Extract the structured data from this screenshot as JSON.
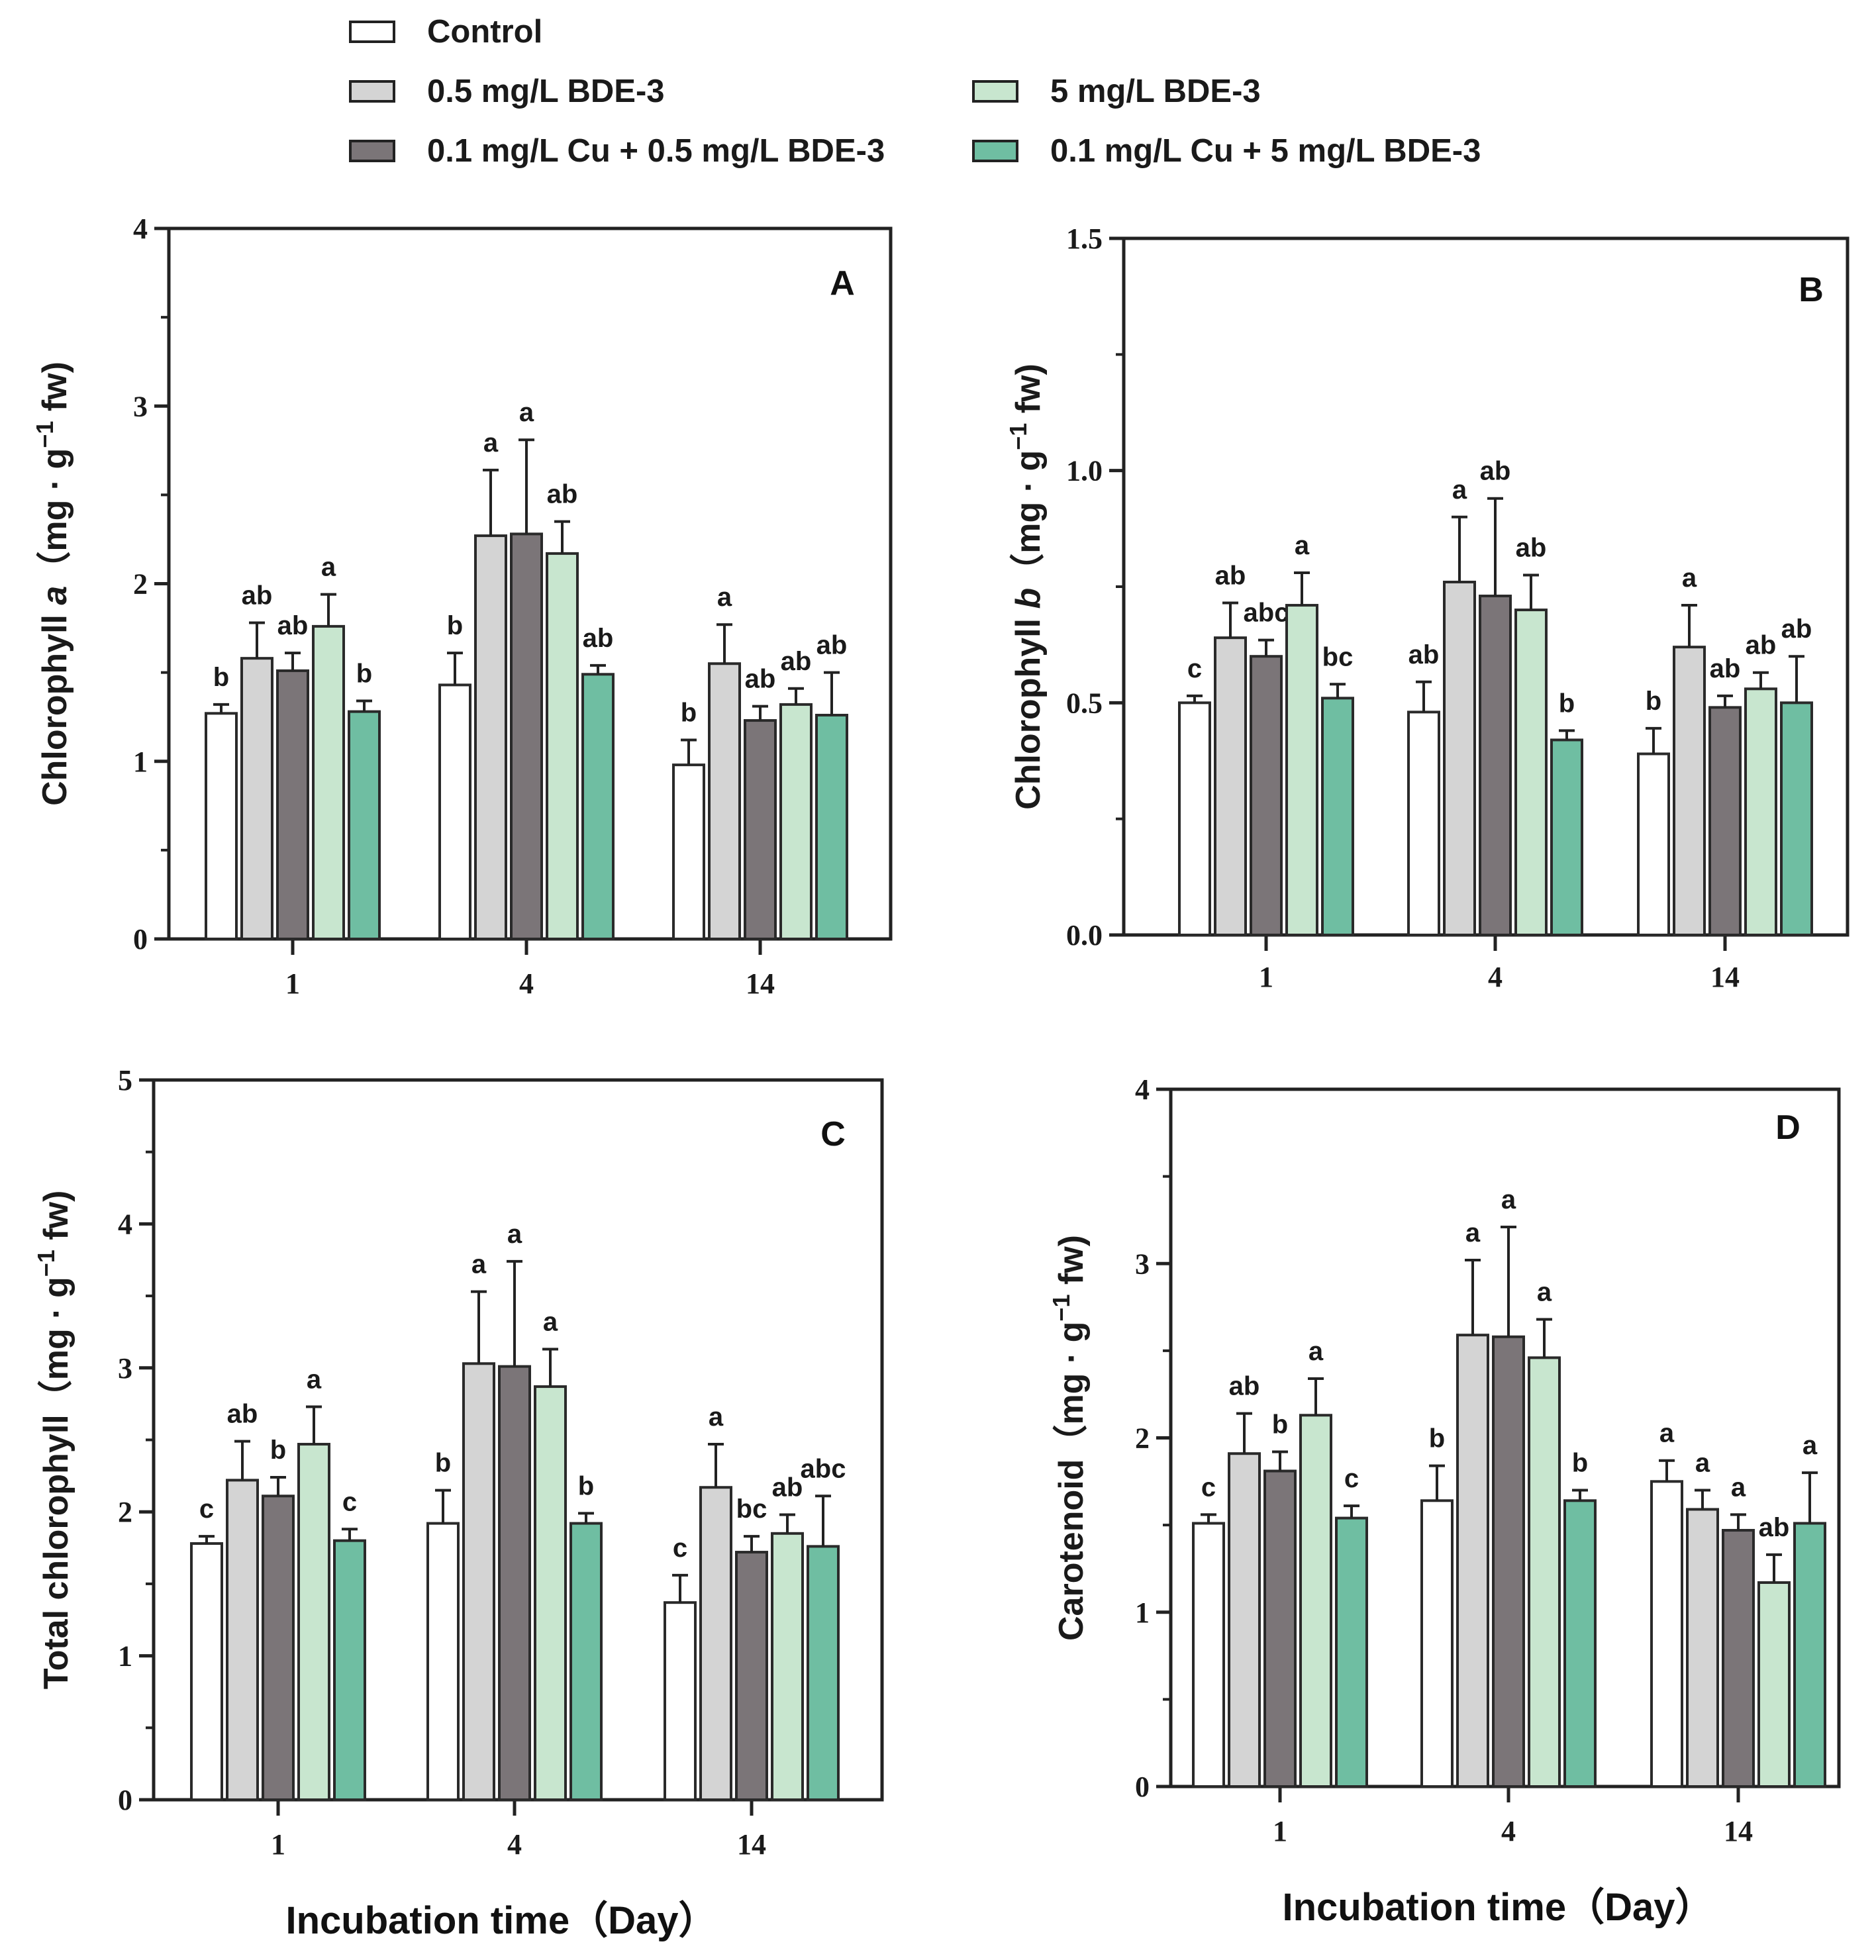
{
  "legend": [
    {
      "label": "Control",
      "color": "#ffffff"
    },
    {
      "label": "0.5 mg/L BDE-3",
      "color": "#d4d4d4"
    },
    {
      "label": "5 mg/L BDE-3",
      "color": "#c8e6cf"
    },
    {
      "label": "0.1 mg/L Cu + 0.5 mg/L BDE-3",
      "color": "#7b7578"
    },
    {
      "label": "0.1 mg/L Cu + 5 mg/L BDE-3",
      "color": "#6fbea2"
    }
  ],
  "chart_data": [
    {
      "type": "bar",
      "panel": "A",
      "ylabel_prefix": "Chlorophyll",
      "ylabel_italic": "a",
      "ylabel_unit": "（mg · g",
      "ylabel_sup": "−1",
      "ylabel_end": " fw)",
      "ylim": [
        0,
        4
      ],
      "yticks": [
        "0",
        "1",
        "2",
        "3",
        "4"
      ],
      "categories": [
        "1",
        "4",
        "14"
      ],
      "series": [
        {
          "name": "Control",
          "values": [
            1.27,
            1.43,
            0.98
          ],
          "errors": [
            0.05,
            0.18,
            0.14
          ],
          "letters": [
            "b",
            "b",
            "b"
          ]
        },
        {
          "name": "0.5 mg/L BDE-3",
          "values": [
            1.58,
            2.27,
            1.55
          ],
          "errors": [
            0.2,
            0.37,
            0.22
          ],
          "letters": [
            "ab",
            "a",
            "a"
          ]
        },
        {
          "name": "0.1 mg/L Cu + 0.5 mg/L BDE-3",
          "values": [
            1.51,
            2.28,
            1.23
          ],
          "errors": [
            0.1,
            0.53,
            0.08
          ],
          "letters": [
            "ab",
            "a",
            "ab"
          ]
        },
        {
          "name": "5 mg/L BDE-3",
          "values": [
            1.76,
            2.17,
            1.32
          ],
          "errors": [
            0.18,
            0.18,
            0.09
          ],
          "letters": [
            "a",
            "ab",
            "ab"
          ]
        },
        {
          "name": "0.1 mg/L Cu + 5 mg/L BDE-3",
          "values": [
            1.28,
            1.49,
            1.26
          ],
          "errors": [
            0.06,
            0.05,
            0.24
          ],
          "letters": [
            "b",
            "ab",
            "ab"
          ]
        }
      ]
    },
    {
      "type": "bar",
      "panel": "B",
      "ylabel_prefix": "Chlorophyll",
      "ylabel_italic": "b",
      "ylabel_unit": "（mg · g",
      "ylabel_sup": "−1",
      "ylabel_end": " fw)",
      "ylim": [
        0,
        1.5
      ],
      "yticks": [
        "0.0",
        "0.5",
        "1.0",
        "1.5"
      ],
      "categories": [
        "1",
        "4",
        "14"
      ],
      "series": [
        {
          "name": "Control",
          "values": [
            0.5,
            0.48,
            0.39
          ],
          "errors": [
            0.015,
            0.065,
            0.055
          ],
          "letters": [
            "c",
            "ab",
            "b"
          ]
        },
        {
          "name": "0.5 mg/L BDE-3",
          "values": [
            0.64,
            0.76,
            0.62
          ],
          "errors": [
            0.075,
            0.14,
            0.09
          ],
          "letters": [
            "ab",
            "a",
            "a"
          ]
        },
        {
          "name": "0.1 mg/L Cu + 0.5 mg/L BDE-3",
          "values": [
            0.6,
            0.73,
            0.49
          ],
          "errors": [
            0.035,
            0.21,
            0.025
          ],
          "letters": [
            "abc",
            "ab",
            "ab"
          ]
        },
        {
          "name": "5 mg/L BDE-3",
          "values": [
            0.71,
            0.7,
            0.53
          ],
          "errors": [
            0.07,
            0.075,
            0.035
          ],
          "letters": [
            "a",
            "ab",
            "ab"
          ]
        },
        {
          "name": "0.1 mg/L Cu + 5 mg/L BDE-3",
          "values": [
            0.51,
            0.42,
            0.5
          ],
          "errors": [
            0.03,
            0.02,
            0.1
          ],
          "letters": [
            "bc",
            "b",
            "ab"
          ]
        }
      ]
    },
    {
      "type": "bar",
      "panel": "C",
      "ylabel_prefix": "Total chlorophyll",
      "ylabel_italic": "",
      "ylabel_unit": "（mg · g",
      "ylabel_sup": "−1",
      "ylabel_end": " fw)",
      "ylim": [
        0,
        5
      ],
      "yticks": [
        "0",
        "1",
        "2",
        "3",
        "4",
        "5"
      ],
      "categories": [
        "1",
        "4",
        "14"
      ],
      "series": [
        {
          "name": "Control",
          "values": [
            1.78,
            1.92,
            1.37
          ],
          "errors": [
            0.05,
            0.23,
            0.19
          ],
          "letters": [
            "c",
            "b",
            "c"
          ]
        },
        {
          "name": "0.5 mg/L BDE-3",
          "values": [
            2.22,
            3.03,
            2.17
          ],
          "errors": [
            0.27,
            0.5,
            0.3
          ],
          "letters": [
            "ab",
            "a",
            "a"
          ]
        },
        {
          "name": "0.1 mg/L Cu + 0.5 mg/L BDE-3",
          "values": [
            2.11,
            3.01,
            1.72
          ],
          "errors": [
            0.13,
            0.73,
            0.11
          ],
          "letters": [
            "b",
            "a",
            "bc"
          ]
        },
        {
          "name": "5 mg/L BDE-3",
          "values": [
            2.47,
            2.87,
            1.85
          ],
          "errors": [
            0.26,
            0.26,
            0.13
          ],
          "letters": [
            "a",
            "a",
            "ab"
          ]
        },
        {
          "name": "0.1 mg/L Cu + 5 mg/L BDE-3",
          "values": [
            1.8,
            1.92,
            1.76
          ],
          "errors": [
            0.08,
            0.07,
            0.35
          ],
          "letters": [
            "c",
            "b",
            "abc"
          ]
        }
      ]
    },
    {
      "type": "bar",
      "panel": "D",
      "ylabel_prefix": "Carotenoid",
      "ylabel_italic": "",
      "ylabel_unit": "（mg · g",
      "ylabel_sup": "−1",
      "ylabel_end": " fw)",
      "ylim": [
        0,
        4
      ],
      "yticks": [
        "0",
        "1",
        "2",
        "3",
        "4"
      ],
      "categories": [
        "1",
        "4",
        "14"
      ],
      "series": [
        {
          "name": "Control",
          "values": [
            1.51,
            1.64,
            1.75
          ],
          "errors": [
            0.05,
            0.2,
            0.12
          ],
          "letters": [
            "c",
            "b",
            "a"
          ]
        },
        {
          "name": "0.5 mg/L BDE-3",
          "values": [
            1.91,
            2.59,
            1.59
          ],
          "errors": [
            0.23,
            0.43,
            0.11
          ],
          "letters": [
            "ab",
            "a",
            "a"
          ]
        },
        {
          "name": "0.1 mg/L Cu + 0.5 mg/L BDE-3",
          "values": [
            1.81,
            2.58,
            1.47
          ],
          "errors": [
            0.11,
            0.63,
            0.09
          ],
          "letters": [
            "b",
            "a",
            "a"
          ]
        },
        {
          "name": "5 mg/L BDE-3",
          "values": [
            2.13,
            2.46,
            1.17
          ],
          "errors": [
            0.21,
            0.22,
            0.16
          ],
          "letters": [
            "a",
            "a",
            "ab"
          ]
        },
        {
          "name": "0.1 mg/L Cu + 5 mg/L BDE-3",
          "values": [
            1.54,
            1.64,
            1.51
          ],
          "errors": [
            0.07,
            0.06,
            0.29
          ],
          "letters": [
            "c",
            "b",
            "a"
          ]
        }
      ]
    }
  ],
  "xtitles": [
    "Incubation time（Day）",
    "Incubation time（Day）"
  ]
}
